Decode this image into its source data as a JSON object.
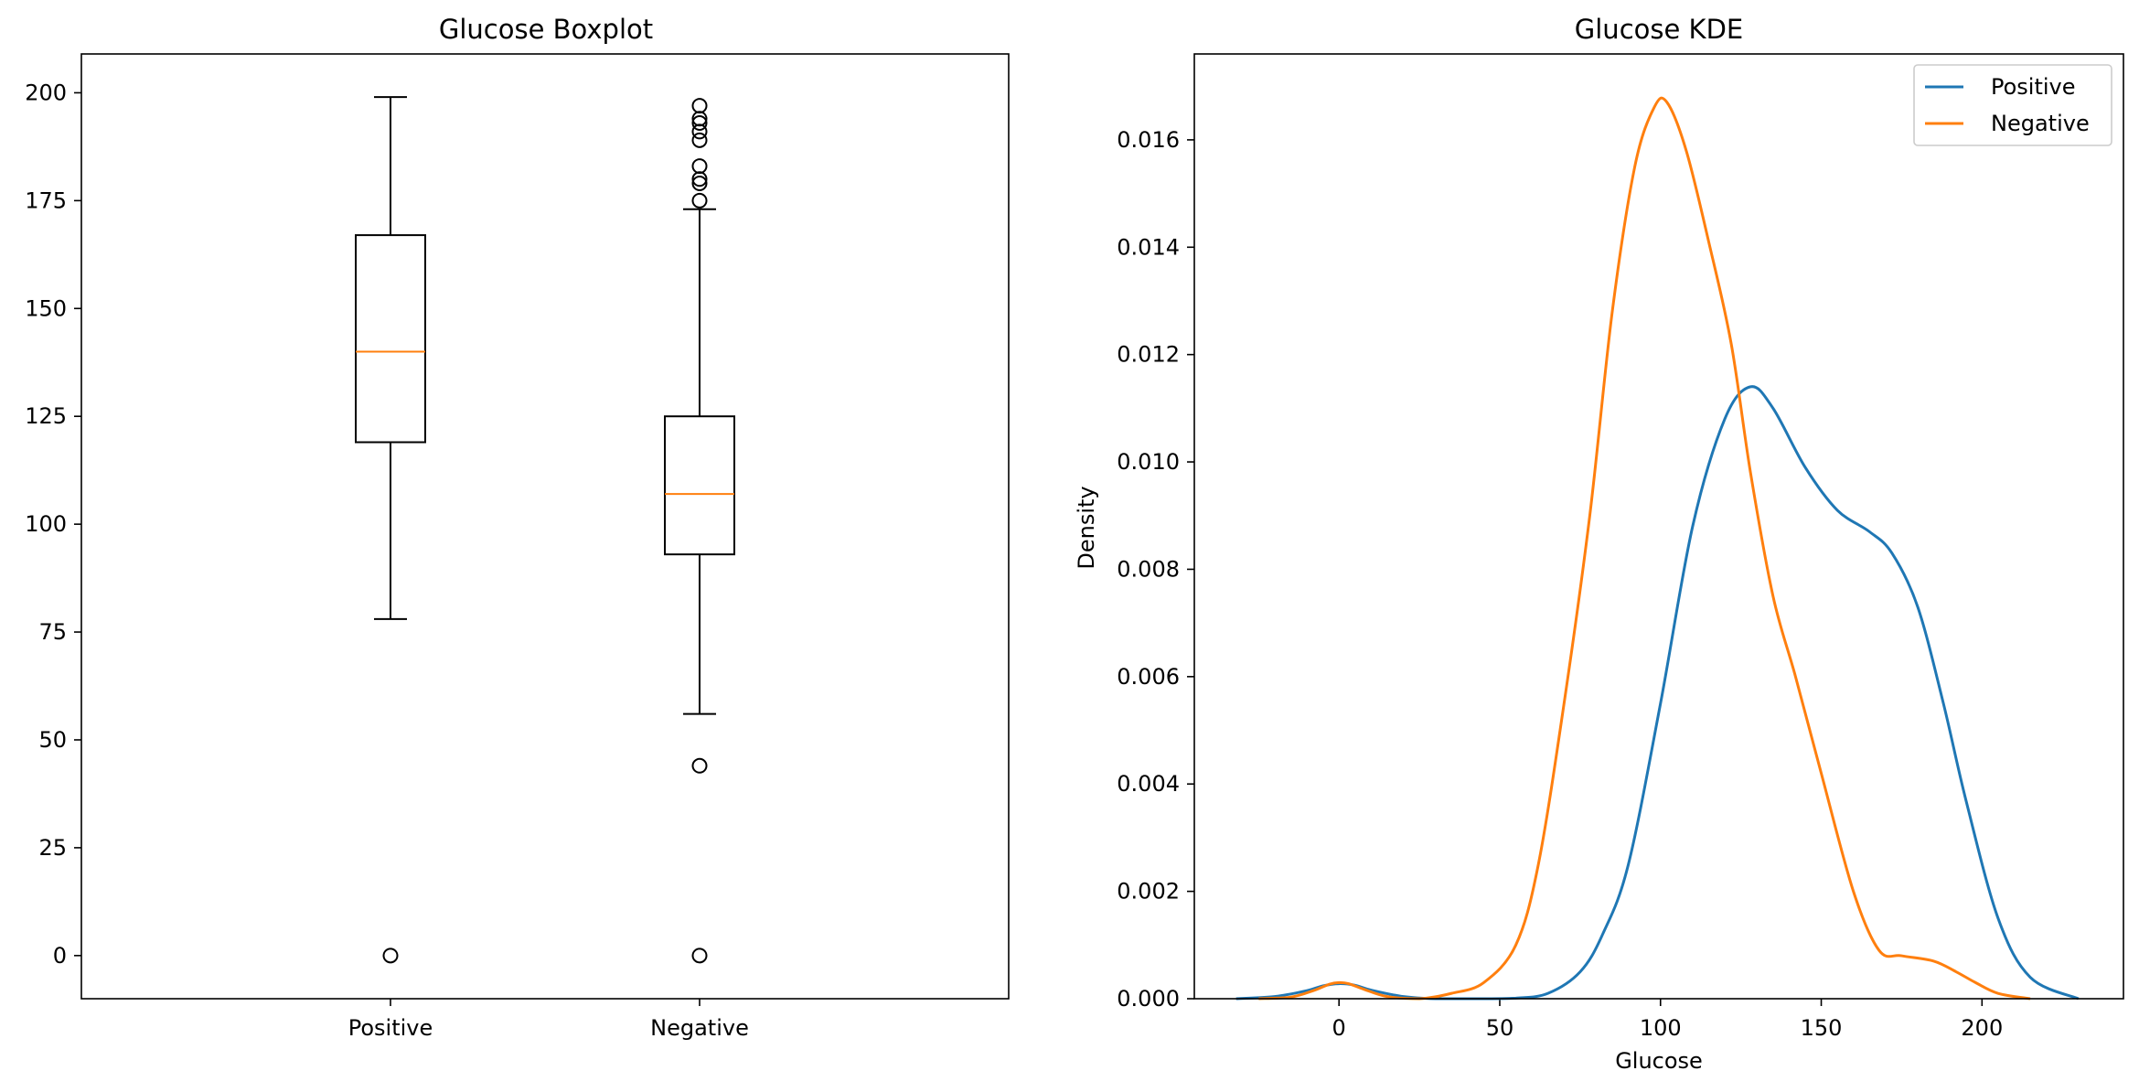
{
  "chart_data": [
    {
      "type": "boxplot",
      "title": "Glucose Boxplot",
      "xlabel": "",
      "ylabel": "",
      "ylim": [
        -10,
        209
      ],
      "yticks": [
        0,
        25,
        50,
        75,
        100,
        125,
        150,
        175,
        200
      ],
      "grid": false,
      "boxes": [
        {
          "label": "Positive",
          "whisker_low": 78,
          "q1": 119,
          "median": 140,
          "q3": 167,
          "whisker_high": 199,
          "outliers": [
            0
          ]
        },
        {
          "label": "Negative",
          "whisker_low": 56,
          "q1": 93,
          "median": 107,
          "q3": 125,
          "whisker_high": 173,
          "outliers": [
            0,
            44,
            175,
            179,
            180,
            183,
            189,
            191,
            193,
            194,
            197
          ]
        }
      ],
      "colors": {
        "box": "#000000",
        "median": "#ff7f0e"
      }
    },
    {
      "type": "line",
      "title": "Glucose KDE",
      "xlabel": "Glucose",
      "ylabel": "Density",
      "xlim": [
        -45,
        244
      ],
      "ylim": [
        0,
        0.0176
      ],
      "xticks": [
        0,
        50,
        100,
        150,
        200
      ],
      "yticks": [
        "0.000",
        "0.002",
        "0.004",
        "0.006",
        "0.008",
        "0.010",
        "0.012",
        "0.014",
        "0.016"
      ],
      "grid": false,
      "legend": "top-right",
      "series": [
        {
          "name": "Positive",
          "color": "#1f77b4",
          "x": [
            -32,
            -20,
            -10,
            -5,
            0,
            5,
            10,
            20,
            30,
            45,
            55,
            65,
            75,
            82,
            90,
            100,
            110,
            120,
            128,
            135,
            145,
            155,
            165,
            172,
            180,
            188,
            195,
            205,
            215,
            230
          ],
          "y": [
            0.0,
            4e-05,
            0.00015,
            0.00024,
            0.00028,
            0.00025,
            0.00016,
            4e-05,
            0.0,
            0.0,
            1e-05,
            0.0001,
            0.0005,
            0.0012,
            0.0025,
            0.0055,
            0.0088,
            0.0108,
            0.0114,
            0.011,
            0.0099,
            0.0091,
            0.0087,
            0.0083,
            0.0073,
            0.0055,
            0.0037,
            0.0015,
            0.0004,
            0.0
          ]
        },
        {
          "name": "Negative",
          "color": "#ff7f0e",
          "x": [
            -25,
            -15,
            -8,
            -3,
            0,
            3,
            8,
            15,
            25,
            35,
            45,
            55,
            62,
            70,
            78,
            85,
            92,
            98,
            102,
            108,
            115,
            122,
            128,
            135,
            142,
            150,
            160,
            168,
            175,
            185,
            192,
            198,
            205,
            215
          ],
          "y": [
            0.0,
            3e-05,
            0.00015,
            0.00027,
            0.0003,
            0.00028,
            0.00017,
            4e-05,
            0.0,
            0.0001,
            0.0003,
            0.001,
            0.0025,
            0.0055,
            0.009,
            0.0128,
            0.0155,
            0.0166,
            0.0167,
            0.0158,
            0.0141,
            0.0122,
            0.0098,
            0.0075,
            0.006,
            0.0042,
            0.002,
            0.0009,
            0.0008,
            0.0007,
            0.0005,
            0.0003,
            0.0001,
            0.0
          ]
        }
      ]
    }
  ]
}
